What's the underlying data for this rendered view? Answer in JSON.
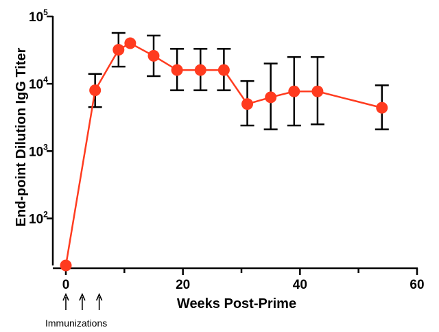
{
  "chart_data": {
    "type": "line",
    "title": "",
    "xlabel": "Weeks Post-Prime",
    "ylabel": "End-point Dilution IgG Titer",
    "yscale": "log",
    "xlim": [
      0,
      60
    ],
    "ylim": [
      20,
      100000
    ],
    "x_ticks": [
      0,
      20,
      40,
      60
    ],
    "y_ticks": [
      {
        "value": 100,
        "base": "10",
        "exp": "2"
      },
      {
        "value": 1000,
        "base": "10",
        "exp": "3"
      },
      {
        "value": 10000,
        "base": "10",
        "exp": "4"
      },
      {
        "value": 100000,
        "base": "10",
        "exp": "5"
      }
    ],
    "grid": false,
    "legend": "none",
    "series": [
      {
        "color": "#ff3b1f",
        "points": [
          {
            "x": 0,
            "y": 20,
            "low": null,
            "high": null
          },
          {
            "x": 5,
            "y": 8000,
            "low": 4500,
            "high": 14000
          },
          {
            "x": 9,
            "y": 32000,
            "low": 18000,
            "high": 57000
          },
          {
            "x": 11,
            "y": 40000,
            "low": null,
            "high": null
          },
          {
            "x": 15,
            "y": 26000,
            "low": 13000,
            "high": 52000
          },
          {
            "x": 19,
            "y": 16000,
            "low": 8000,
            "high": 33000
          },
          {
            "x": 23,
            "y": 16000,
            "low": 8000,
            "high": 33000
          },
          {
            "x": 27,
            "y": 16000,
            "low": 8000,
            "high": 33000
          },
          {
            "x": 31,
            "y": 5000,
            "low": 2400,
            "high": 11000
          },
          {
            "x": 35,
            "y": 6300,
            "low": 2100,
            "high": 20000
          },
          {
            "x": 39,
            "y": 7700,
            "low": 2400,
            "high": 25000
          },
          {
            "x": 43,
            "y": 7700,
            "low": 2500,
            "high": 25000
          },
          {
            "x": 54,
            "y": 4400,
            "low": 2100,
            "high": 9500
          }
        ]
      }
    ],
    "annotations": {
      "immunizations_label": "Immunizations",
      "arrow_weeks": [
        0,
        2.8,
        5.7
      ]
    }
  }
}
